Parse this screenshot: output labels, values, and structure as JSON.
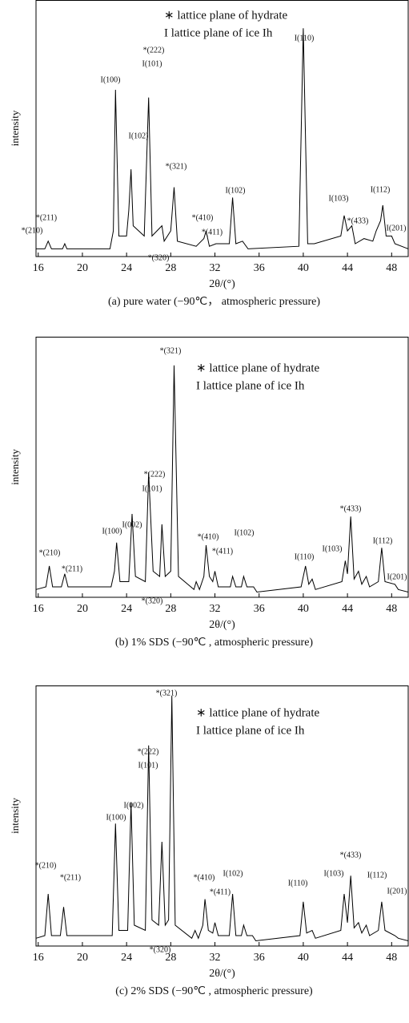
{
  "chart_data": [
    {
      "type": "line",
      "caption": "(a) pure water (−90℃， atmospheric pressure)",
      "xlabel": "2θ/(°)",
      "ylabel": "intensity",
      "legend_notes": [
        "∗ lattice plane of hydrate",
        "I lattice plane of ice Ih"
      ],
      "annotations": [
        "*(210)",
        "*(211)",
        "I(100)",
        "*(222)",
        "I(101)",
        "I(102)",
        "*(321)",
        "*(410)",
        "*(411)",
        "*(320)",
        "I(102)",
        "I(110)",
        "I(103)",
        "*(433)",
        "I(112)",
        "I(201)"
      ],
      "color": "#000000",
      "xlim": [
        15.8,
        49.5
      ],
      "ylim": [
        0,
        100
      ],
      "xticks": [
        16,
        20,
        24,
        28,
        32,
        36,
        40,
        44,
        48
      ],
      "x": [
        15.8,
        16.6,
        16.9,
        17.2,
        18.2,
        18.4,
        18.6,
        22.5,
        22.8,
        23.0,
        23.3,
        24.0,
        24.2,
        24.4,
        24.6,
        25.6,
        26.0,
        26.3,
        27.2,
        27.4,
        28.0,
        28.3,
        28.6,
        30.3,
        31.0,
        31.2,
        31.5,
        32.1,
        33.3,
        33.6,
        33.9,
        34.5,
        35.0,
        39.6,
        40.0,
        40.4,
        41.0,
        43.4,
        43.7,
        44.0,
        44.4,
        44.7,
        45.5,
        46.3,
        46.6,
        47.0,
        47.2,
        47.5,
        48.0,
        48.3,
        49.5
      ],
      "values": [
        3,
        3,
        6,
        3,
        3,
        5,
        3,
        3,
        10,
        65,
        8,
        8,
        18,
        34,
        12,
        8,
        62,
        8,
        12,
        6,
        10,
        27,
        6,
        4,
        7,
        10,
        4,
        5,
        5,
        23,
        5,
        6,
        3,
        4,
        89,
        5,
        5,
        8,
        16,
        10,
        12,
        5,
        7,
        6,
        10,
        14,
        20,
        8,
        8,
        5,
        3
      ]
    },
    {
      "type": "line",
      "caption": "(b) 1%  SDS (−90℃ , atmospheric pressure)",
      "xlabel": "2θ/(°)",
      "ylabel": "intensity",
      "legend_notes": [
        "∗ lattice plane of hydrate",
        "I lattice plane of ice Ih"
      ],
      "annotations": [
        "*(321)",
        "*(222)",
        "I(101)",
        "I(002)",
        "I(100)",
        "*(210)",
        "*(211)",
        "*(410)",
        "*(411)",
        "I(102)",
        "*(320)",
        "I(110)",
        "I(103)",
        "*(433)",
        "I(112)",
        "I(201)"
      ],
      "color": "#000000",
      "xlim": [
        15.8,
        49.5
      ],
      "ylim": [
        0,
        100
      ],
      "xticks": [
        16,
        20,
        24,
        28,
        32,
        36,
        40,
        44,
        48
      ],
      "x": [
        15.8,
        16.7,
        17.0,
        17.3,
        18.1,
        18.4,
        18.7,
        22.6,
        22.9,
        23.1,
        23.4,
        24.2,
        24.5,
        24.8,
        25.7,
        26.0,
        26.4,
        27.0,
        27.2,
        27.5,
        28.0,
        28.3,
        28.7,
        30.1,
        30.3,
        30.6,
        31.0,
        31.2,
        31.5,
        31.8,
        32.0,
        32.3,
        33.4,
        33.6,
        33.9,
        34.4,
        34.6,
        34.9,
        35.5,
        35.8,
        39.8,
        40.2,
        40.5,
        40.8,
        41.1,
        43.5,
        43.8,
        44.0,
        44.3,
        44.6,
        45.0,
        45.3,
        45.7,
        46.0,
        46.8,
        47.1,
        47.4,
        48.3,
        48.6,
        49.5
      ],
      "values": [
        3,
        4,
        12,
        4,
        4,
        9,
        4,
        4,
        10,
        21,
        6,
        6,
        32,
        8,
        6,
        48,
        10,
        8,
        28,
        8,
        10,
        89,
        8,
        3,
        6,
        3,
        8,
        20,
        8,
        6,
        10,
        4,
        4,
        8,
        4,
        4,
        8,
        4,
        4,
        2,
        4,
        12,
        5,
        7,
        3,
        6,
        14,
        9,
        31,
        7,
        10,
        5,
        8,
        4,
        6,
        19,
        6,
        5,
        3,
        2
      ]
    },
    {
      "type": "line",
      "caption": "(c) 2%  SDS (−90℃ , atmospheric pressure)",
      "xlabel": "2θ/(°)",
      "ylabel": "intensity",
      "legend_notes": [
        "∗ lattice plane of hydrate",
        "I lattice plane of ice Ih"
      ],
      "annotations": [
        "*(321)",
        "*(222)",
        "I(101)",
        "I(002)",
        "I(100)",
        "*(210)",
        "*(211)",
        "*(410)",
        "*(411)",
        "I(102)",
        "*(320)",
        "I(110)",
        "I(103)",
        "*(433)",
        "I(112)",
        "I(201)"
      ],
      "color": "#000000",
      "xlim": [
        15.8,
        49.5
      ],
      "ylim": [
        0,
        100
      ],
      "xticks": [
        16,
        20,
        24,
        28,
        32,
        36,
        40,
        44,
        48
      ],
      "x": [
        15.8,
        16.6,
        16.9,
        17.2,
        18.0,
        18.3,
        18.6,
        22.7,
        23.0,
        23.3,
        24.1,
        24.4,
        24.7,
        25.7,
        26.0,
        26.3,
        26.9,
        27.2,
        27.5,
        27.8,
        28.1,
        28.4,
        29.9,
        30.2,
        30.5,
        30.9,
        31.1,
        31.4,
        31.8,
        32.0,
        32.3,
        33.3,
        33.6,
        33.9,
        34.4,
        34.6,
        34.9,
        35.4,
        35.7,
        39.7,
        40.0,
        40.3,
        40.8,
        41.1,
        43.4,
        43.7,
        44.0,
        44.3,
        44.6,
        45.0,
        45.3,
        45.7,
        46.0,
        46.8,
        47.1,
        47.4,
        48.3,
        48.6,
        49.5
      ],
      "values": [
        3,
        4,
        20,
        4,
        4,
        15,
        4,
        4,
        47,
        6,
        6,
        55,
        8,
        6,
        77,
        10,
        8,
        40,
        8,
        10,
        96,
        8,
        3,
        6,
        3,
        8,
        18,
        6,
        5,
        9,
        4,
        4,
        20,
        4,
        4,
        8,
        4,
        4,
        2,
        4,
        17,
        5,
        6,
        3,
        6,
        20,
        9,
        27,
        7,
        9,
        5,
        8,
        4,
        6,
        17,
        6,
        4,
        3,
        2
      ]
    }
  ]
}
